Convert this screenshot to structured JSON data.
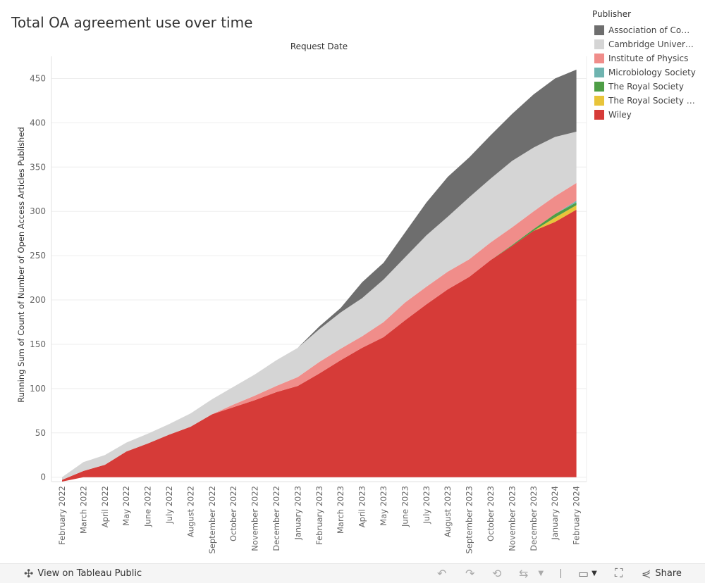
{
  "title": "Total OA agreement use over time",
  "chart_data": {
    "type": "area",
    "stacked": true,
    "title": "Total OA agreement use over time",
    "column_header": "Request Date",
    "ylabel": "Running Sum of Count of Number of Open Access Articles Published",
    "ylim": [
      -5,
      475
    ],
    "yticks": [
      0,
      50,
      100,
      150,
      200,
      250,
      300,
      350,
      400,
      450
    ],
    "categories": [
      "February 2022",
      "March 2022",
      "April 2022",
      "May 2022",
      "June 2022",
      "July 2022",
      "August 2022",
      "September 2022",
      "October 2022",
      "November 2022",
      "December 2022",
      "January 2023",
      "February 2023",
      "March 2023",
      "April 2023",
      "May 2023",
      "June 2023",
      "July 2023",
      "August 2023",
      "September 2023",
      "October 2023",
      "November 2023",
      "December 2023",
      "January 2024",
      "February 2024"
    ],
    "series": [
      {
        "name": "Wiley",
        "color": "#d63b38",
        "values": [
          -3,
          7,
          14,
          29,
          38,
          48,
          57,
          71,
          79,
          87,
          96,
          103,
          117,
          132,
          146,
          158,
          177,
          195,
          212,
          226,
          245,
          261,
          278,
          288,
          302
        ]
      },
      {
        "name": "The Royal Society of...",
        "color": "#e8c43a",
        "values": [
          0,
          0,
          0,
          0,
          0,
          0,
          0,
          0,
          0,
          0,
          0,
          0,
          0,
          0,
          0,
          0,
          0,
          0,
          0,
          0,
          0,
          0,
          0,
          5,
          5
        ]
      },
      {
        "name": "The Royal Society",
        "color": "#4e9e46",
        "values": [
          0,
          0,
          0,
          0,
          0,
          0,
          0,
          0,
          0,
          0,
          0,
          0,
          0,
          0,
          0,
          0,
          0,
          0,
          0,
          0,
          0,
          1,
          2,
          4,
          3
        ]
      },
      {
        "name": "Microbiology Society",
        "color": "#6fb4b0",
        "values": [
          0,
          0,
          0,
          0,
          0,
          0,
          0,
          0,
          0,
          0,
          0,
          0,
          0,
          0,
          0,
          0,
          0,
          0,
          0,
          0,
          0,
          0,
          0,
          0,
          2
        ]
      },
      {
        "name": "Institute of Physics",
        "color": "#f08d8a",
        "values": [
          0,
          0,
          0,
          0,
          0,
          0,
          0,
          0,
          3,
          5,
          7,
          10,
          13,
          13,
          13,
          17,
          20,
          20,
          20,
          20,
          20,
          20,
          20,
          20,
          20
        ]
      },
      {
        "name": "Cambridge Universi...",
        "color": "#d5d5d5",
        "values": [
          3,
          10,
          11,
          10,
          11,
          12,
          15,
          17,
          20,
          24,
          29,
          33,
          37,
          41,
          43,
          48,
          51,
          58,
          62,
          70,
          72,
          75,
          72,
          67,
          58
        ]
      },
      {
        "name": "Association of Comp...",
        "color": "#6e6e6e",
        "values": [
          0,
          0,
          0,
          0,
          0,
          0,
          0,
          0,
          0,
          0,
          0,
          0,
          3,
          5,
          18,
          19,
          28,
          37,
          45,
          45,
          49,
          53,
          60,
          66,
          70
        ]
      }
    ]
  },
  "legend": {
    "title": "Publisher",
    "items": [
      {
        "label": "Association of Comp...",
        "color": "#6e6e6e"
      },
      {
        "label": "Cambridge Universi...",
        "color": "#d5d5d5"
      },
      {
        "label": "Institute of Physics",
        "color": "#f08d8a"
      },
      {
        "label": "Microbiology Society",
        "color": "#6fb4b0"
      },
      {
        "label": "The Royal Society",
        "color": "#4e9e46"
      },
      {
        "label": "The Royal Society of...",
        "color": "#e8c43a"
      },
      {
        "label": "Wiley",
        "color": "#d63b38"
      }
    ]
  },
  "toolbar": {
    "view_label": "View on Tableau Public",
    "share_label": "Share",
    "icons": [
      "undo-icon",
      "redo-icon",
      "revert-icon",
      "refresh-icon",
      "download-icon",
      "fullscreen-icon",
      "share-icon"
    ]
  }
}
